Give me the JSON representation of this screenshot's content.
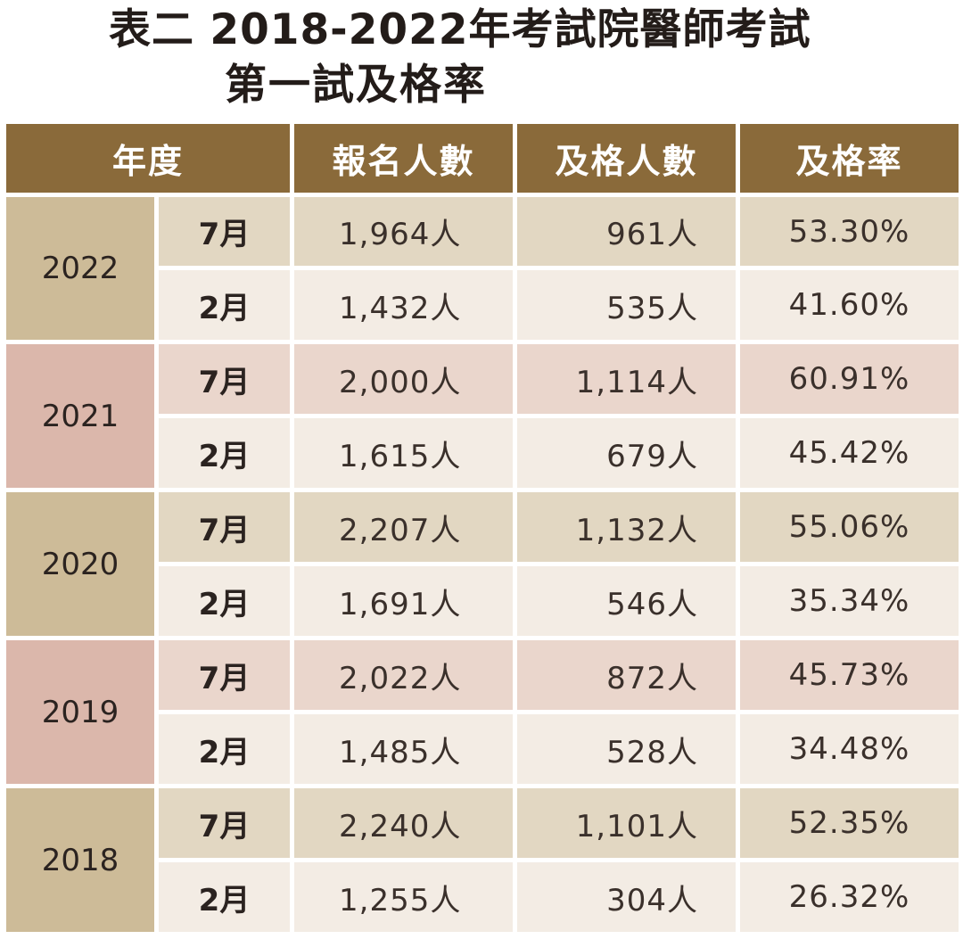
{
  "title": {
    "line1": "表二 2018-2022年考試院醫師考試",
    "line2": "第一試及格率"
  },
  "table": {
    "headers": [
      "年度",
      "報名人數",
      "及格人數",
      "及格率"
    ],
    "years": [
      {
        "year": "2022",
        "rows": [
          {
            "month": "7月",
            "registered": "1,964人",
            "passed": "961人",
            "rate": "53.30%"
          },
          {
            "month": "2月",
            "registered": "1,432人",
            "passed": "535人",
            "rate": "41.60%"
          }
        ]
      },
      {
        "year": "2021",
        "rows": [
          {
            "month": "7月",
            "registered": "2,000人",
            "passed": "1,114人",
            "rate": "60.91%"
          },
          {
            "month": "2月",
            "registered": "1,615人",
            "passed": "679人",
            "rate": "45.42%"
          }
        ]
      },
      {
        "year": "2020",
        "rows": [
          {
            "month": "7月",
            "registered": "2,207人",
            "passed": "1,132人",
            "rate": "55.06%"
          },
          {
            "month": "2月",
            "registered": "1,691人",
            "passed": "546人",
            "rate": "35.34%"
          }
        ]
      },
      {
        "year": "2019",
        "rows": [
          {
            "month": "7月",
            "registered": "2,022人",
            "passed": "872人",
            "rate": "45.73%"
          },
          {
            "month": "2月",
            "registered": "1,485人",
            "passed": "528人",
            "rate": "34.48%"
          }
        ]
      },
      {
        "year": "2018",
        "rows": [
          {
            "month": "7月",
            "registered": "2,240人",
            "passed": "1,101人",
            "rate": "52.35%"
          },
          {
            "month": "2月",
            "registered": "1,255人",
            "passed": "304人",
            "rate": "26.32%"
          }
        ]
      }
    ]
  },
  "colors": {
    "header": "#8a6a3a",
    "tan_year": "#cdbb98",
    "tan_row": "#e2d7c2",
    "pink_year": "#dbb7ab",
    "pink_row": "#ead6cc",
    "light_row": "#f3ece4"
  }
}
